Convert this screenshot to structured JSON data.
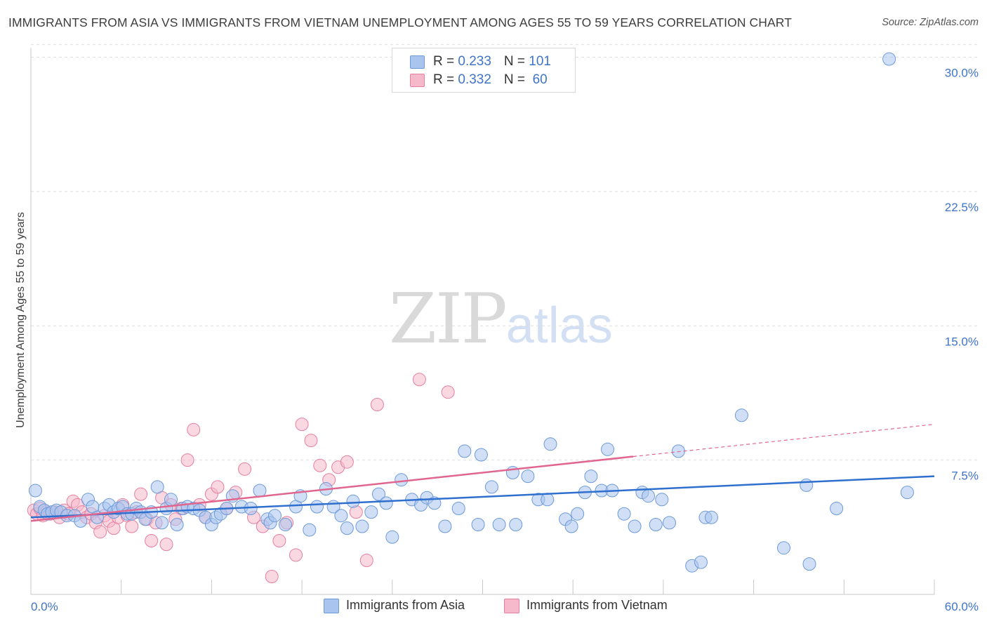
{
  "title": "IMMIGRANTS FROM ASIA VS IMMIGRANTS FROM VIETNAM UNEMPLOYMENT AMONG AGES 55 TO 59 YEARS CORRELATION CHART",
  "source": "Source: ZipAtlas.com",
  "watermark": {
    "zip": "ZIP",
    "atlas": "atlas"
  },
  "legend_top": [
    {
      "r_label": "R = ",
      "r_value": "0.233",
      "n_label": "N = ",
      "n_value": "101"
    },
    {
      "r_label": "R = ",
      "r_value": "0.332",
      "n_label": "N = ",
      "n_value": " 60"
    }
  ],
  "colors": {
    "asia_fill": "#a9c5ef",
    "asia_stroke": "#6c9ad9",
    "asia_line": "#2f6fce",
    "vietnam_fill": "#f6b8cb",
    "vietnam_stroke": "#e57fa0",
    "vietnam_line": "#e0668f",
    "axis_label": "#3f74c8",
    "grid": "#dedede"
  },
  "chart_data": {
    "type": "scatter",
    "title": "IMMIGRANTS FROM ASIA VS IMMIGRANTS FROM VIETNAM UNEMPLOYMENT AMONG AGES 55 TO 59 YEARS CORRELATION CHART",
    "xlabel": "",
    "ylabel": "Unemployment Among Ages 55 to 59 years",
    "xlim": [
      0,
      60
    ],
    "ylim": [
      0,
      31
    ],
    "x_tick_labels": [
      "0.0%",
      "60.0%"
    ],
    "y_ticks": [
      7.5,
      15.0,
      22.5,
      30.0
    ],
    "y_tick_labels": [
      "7.5%",
      "15.0%",
      "22.5%",
      "30.0%"
    ],
    "grid": "horizontal dashed",
    "legend_position": "top-center and bottom",
    "series": [
      {
        "name": "Immigrants from Asia",
        "r": 0.233,
        "n": 101,
        "trend": {
          "x": [
            0,
            60
          ],
          "y": [
            4.3,
            6.6
          ],
          "solid_to_x": 60
        },
        "points": [
          [
            0.3,
            5.8
          ],
          [
            0.6,
            4.9
          ],
          [
            0.9,
            4.7
          ],
          [
            1.1,
            4.5
          ],
          [
            1.4,
            4.6
          ],
          [
            1.7,
            4.7
          ],
          [
            2.0,
            4.6
          ],
          [
            2.4,
            4.4
          ],
          [
            2.9,
            4.4
          ],
          [
            3.3,
            4.1
          ],
          [
            3.8,
            5.3
          ],
          [
            4.1,
            4.9
          ],
          [
            4.4,
            4.3
          ],
          [
            4.9,
            4.8
          ],
          [
            5.2,
            5.0
          ],
          [
            5.5,
            4.6
          ],
          [
            5.8,
            4.8
          ],
          [
            6.1,
            4.9
          ],
          [
            6.4,
            4.5
          ],
          [
            6.7,
            4.5
          ],
          [
            7.0,
            4.8
          ],
          [
            7.3,
            4.6
          ],
          [
            7.6,
            4.2
          ],
          [
            8.0,
            4.6
          ],
          [
            8.4,
            6.0
          ],
          [
            8.7,
            4.0
          ],
          [
            9.0,
            4.8
          ],
          [
            9.3,
            5.3
          ],
          [
            9.7,
            3.9
          ],
          [
            10.1,
            4.8
          ],
          [
            10.4,
            4.9
          ],
          [
            10.8,
            4.8
          ],
          [
            11.2,
            4.7
          ],
          [
            11.6,
            4.3
          ],
          [
            12.0,
            3.9
          ],
          [
            12.3,
            4.3
          ],
          [
            12.6,
            4.5
          ],
          [
            13.0,
            4.8
          ],
          [
            13.4,
            5.5
          ],
          [
            14.0,
            4.9
          ],
          [
            14.6,
            4.8
          ],
          [
            15.2,
            5.8
          ],
          [
            15.7,
            4.2
          ],
          [
            15.9,
            4.0
          ],
          [
            16.2,
            4.4
          ],
          [
            16.9,
            3.9
          ],
          [
            17.6,
            4.9
          ],
          [
            17.9,
            5.5
          ],
          [
            18.5,
            3.6
          ],
          [
            19.0,
            4.9
          ],
          [
            19.6,
            5.9
          ],
          [
            20.1,
            4.9
          ],
          [
            20.6,
            4.4
          ],
          [
            21.0,
            3.7
          ],
          [
            21.4,
            5.2
          ],
          [
            22.0,
            3.8
          ],
          [
            22.6,
            4.6
          ],
          [
            23.1,
            5.6
          ],
          [
            23.6,
            5.1
          ],
          [
            24.0,
            3.2
          ],
          [
            24.6,
            6.4
          ],
          [
            25.3,
            5.3
          ],
          [
            25.9,
            5.0
          ],
          [
            26.3,
            5.4
          ],
          [
            26.8,
            5.1
          ],
          [
            27.5,
            3.8
          ],
          [
            28.4,
            4.8
          ],
          [
            28.8,
            8.0
          ],
          [
            29.7,
            3.9
          ],
          [
            29.9,
            7.8
          ],
          [
            30.6,
            6.0
          ],
          [
            31.1,
            3.9
          ],
          [
            32.0,
            6.8
          ],
          [
            32.2,
            3.9
          ],
          [
            33.0,
            6.6
          ],
          [
            33.7,
            5.3
          ],
          [
            34.3,
            5.3
          ],
          [
            34.5,
            8.4
          ],
          [
            35.5,
            4.2
          ],
          [
            35.9,
            3.8
          ],
          [
            36.3,
            4.5
          ],
          [
            36.8,
            5.7
          ],
          [
            37.2,
            6.6
          ],
          [
            37.9,
            5.8
          ],
          [
            38.3,
            8.1
          ],
          [
            38.6,
            5.8
          ],
          [
            39.4,
            4.5
          ],
          [
            40.1,
            3.8
          ],
          [
            40.6,
            5.7
          ],
          [
            41.0,
            5.5
          ],
          [
            41.5,
            3.9
          ],
          [
            41.9,
            5.3
          ],
          [
            42.4,
            4.0
          ],
          [
            43.0,
            8.0
          ],
          [
            43.9,
            1.6
          ],
          [
            44.5,
            1.8
          ],
          [
            44.8,
            4.3
          ],
          [
            45.2,
            4.3
          ],
          [
            47.2,
            10.0
          ],
          [
            50.0,
            2.6
          ],
          [
            51.5,
            6.1
          ],
          [
            51.7,
            1.7
          ],
          [
            53.5,
            4.8
          ],
          [
            58.2,
            5.7
          ],
          [
            57.0,
            29.9
          ]
        ]
      },
      {
        "name": "Immigrants from Vietnam",
        "r": 0.332,
        "n": 60,
        "trend": {
          "x": [
            0,
            60
          ],
          "y": [
            4.1,
            9.5
          ],
          "solid_to_x": 40
        },
        "points": [
          [
            0.2,
            4.7
          ],
          [
            0.4,
            4.5
          ],
          [
            0.6,
            4.8
          ],
          [
            0.8,
            4.4
          ],
          [
            1.0,
            4.6
          ],
          [
            1.3,
            4.5
          ],
          [
            1.6,
            4.6
          ],
          [
            1.9,
            4.3
          ],
          [
            2.2,
            4.7
          ],
          [
            2.5,
            4.5
          ],
          [
            2.8,
            5.2
          ],
          [
            3.1,
            5.0
          ],
          [
            3.4,
            4.6
          ],
          [
            3.7,
            4.3
          ],
          [
            4.0,
            4.5
          ],
          [
            4.3,
            4.0
          ],
          [
            4.6,
            3.5
          ],
          [
            4.9,
            4.4
          ],
          [
            5.2,
            4.1
          ],
          [
            5.5,
            3.7
          ],
          [
            5.8,
            4.3
          ],
          [
            6.1,
            5.0
          ],
          [
            6.4,
            4.4
          ],
          [
            6.7,
            3.8
          ],
          [
            7.0,
            4.6
          ],
          [
            7.3,
            5.6
          ],
          [
            7.7,
            4.2
          ],
          [
            8.0,
            3.0
          ],
          [
            8.3,
            4.0
          ],
          [
            8.7,
            5.4
          ],
          [
            9.0,
            2.8
          ],
          [
            9.3,
            5.0
          ],
          [
            9.6,
            4.2
          ],
          [
            10.0,
            4.8
          ],
          [
            10.4,
            7.5
          ],
          [
            10.8,
            9.2
          ],
          [
            11.2,
            5.0
          ],
          [
            11.6,
            4.3
          ],
          [
            12.0,
            5.6
          ],
          [
            12.4,
            6.0
          ],
          [
            13.0,
            4.8
          ],
          [
            13.6,
            5.7
          ],
          [
            14.2,
            7.0
          ],
          [
            14.8,
            4.3
          ],
          [
            15.4,
            3.8
          ],
          [
            16.0,
            1.0
          ],
          [
            16.5,
            3.0
          ],
          [
            17.0,
            4.0
          ],
          [
            17.6,
            2.2
          ],
          [
            18.0,
            9.5
          ],
          [
            18.6,
            8.6
          ],
          [
            19.2,
            7.2
          ],
          [
            19.8,
            6.4
          ],
          [
            20.4,
            7.1
          ],
          [
            21.0,
            7.4
          ],
          [
            21.6,
            4.6
          ],
          [
            22.3,
            1.9
          ],
          [
            23.0,
            10.6
          ],
          [
            25.8,
            12.0
          ],
          [
            27.7,
            11.3
          ]
        ]
      }
    ]
  },
  "legend_bottom": [
    "Immigrants from Asia",
    "Immigrants from Vietnam"
  ]
}
